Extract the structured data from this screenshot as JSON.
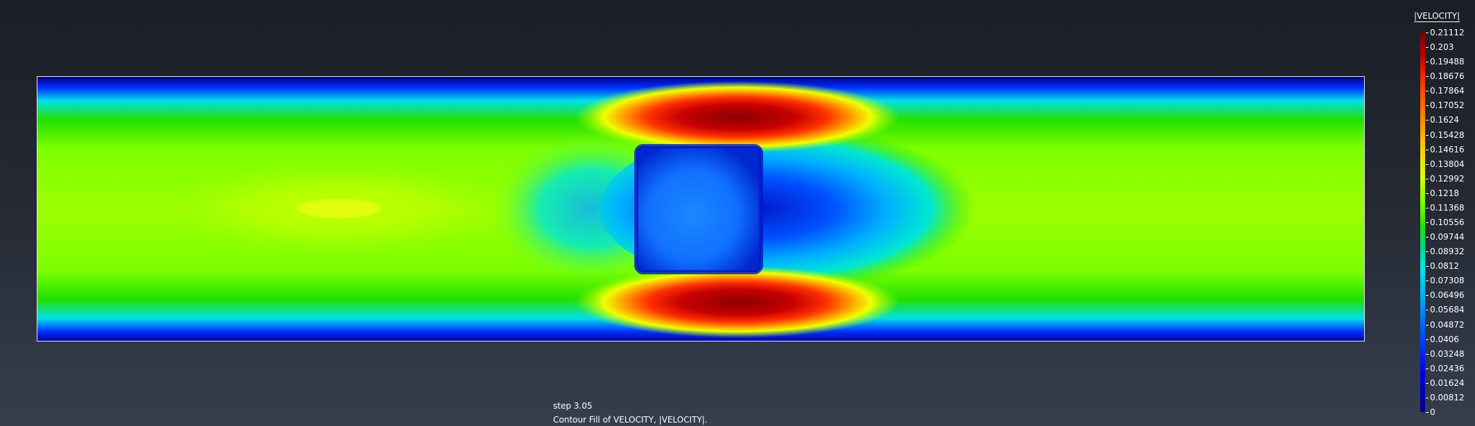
{
  "colorbar": {
    "title": "|VELOCITY|",
    "labels": [
      "0.21112",
      "0.203",
      "0.19488",
      "0.18676",
      "0.17864",
      "0.17052",
      "0.1624",
      "0.15428",
      "0.14616",
      "0.13804",
      "0.12992",
      "0.1218",
      "0.11368",
      "0.10556",
      "0.09744",
      "0.08932",
      "0.0812",
      "0.07308",
      "0.06496",
      "0.05684",
      "0.04872",
      "0.0406",
      "0.03248",
      "0.02436",
      "0.01624",
      "0.00812",
      "0"
    ]
  },
  "status": {
    "step": "step 3.05",
    "description": "Contour Fill of VELOCITY, |VELOCITY|."
  }
}
